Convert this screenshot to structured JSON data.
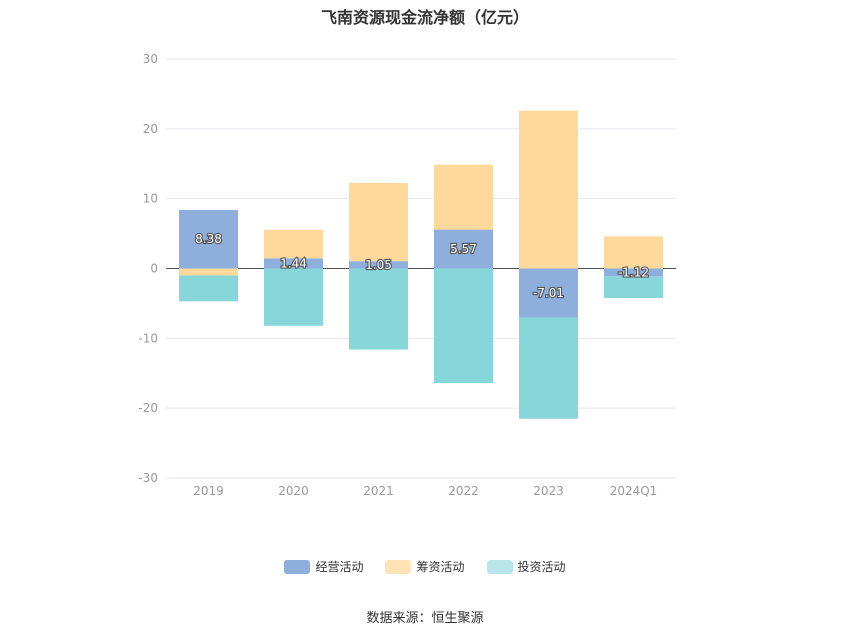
{
  "title": "飞南资源现金流净额（亿元）",
  "source": "数据来源：恒生聚源",
  "chart_data": {
    "type": "bar",
    "stacked": true,
    "title": "飞南资源现金流净额（亿元）",
    "categories": [
      "2019",
      "2020",
      "2021",
      "2022",
      "2023",
      "2024Q1"
    ],
    "ylim": [
      -30,
      30
    ],
    "yticks": [
      30,
      20,
      10,
      0,
      -10,
      -20,
      -30
    ],
    "grid": true,
    "legend_position": "bottom",
    "series": [
      {
        "name": "经营活动",
        "color": "#8eaedc",
        "values": [
          8.38,
          1.44,
          1.05,
          5.57,
          -7.01,
          -1.12
        ]
      },
      {
        "name": "筹资活动",
        "color": "#ffd99c",
        "values": [
          -1.0,
          4.1,
          11.2,
          9.3,
          22.6,
          4.6
        ]
      },
      {
        "name": "投资活动",
        "color": "#86d6da",
        "values": [
          -3.7,
          -8.2,
          -11.6,
          -16.4,
          -14.5,
          -3.1
        ]
      }
    ],
    "data_labels": [
      "8.38",
      "1.44",
      "1.05",
      "5.57",
      "-7.01",
      "-1.12"
    ]
  }
}
